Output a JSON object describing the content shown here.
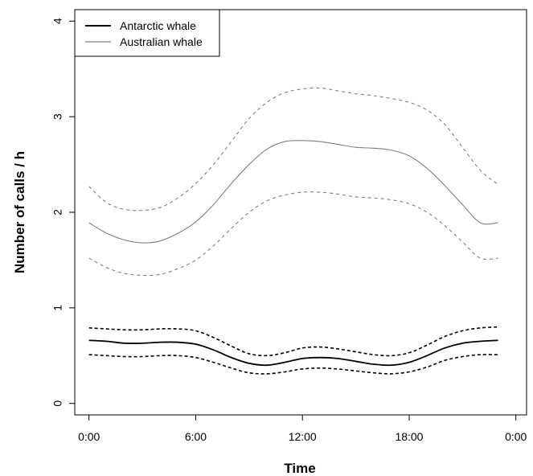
{
  "chart_data": {
    "type": "line",
    "title": "",
    "xlabel": "Time",
    "ylabel": "Number of calls / h",
    "x_ticks": [
      "0:00",
      "6:00",
      "12:00",
      "18:00",
      "0:00"
    ],
    "y_ticks": [
      "0",
      "1",
      "2",
      "3",
      "4"
    ],
    "xlim": [
      -0.8,
      24.6
    ],
    "ylim": [
      -0.12,
      4.12
    ],
    "x_unit": "hour of day",
    "grid": false,
    "legend_position": "top-left",
    "x": [
      0,
      1,
      2,
      3,
      4,
      5,
      6,
      7,
      8,
      9,
      10,
      11,
      12,
      13,
      14,
      15,
      16,
      17,
      18,
      19,
      20,
      21,
      22,
      23
    ],
    "series": [
      {
        "name": "Antarctic whale",
        "color": "#000000",
        "style": "solid",
        "values": [
          0.66,
          0.65,
          0.63,
          0.63,
          0.64,
          0.64,
          0.62,
          0.56,
          0.48,
          0.42,
          0.4,
          0.43,
          0.47,
          0.48,
          0.47,
          0.44,
          0.41,
          0.4,
          0.43,
          0.5,
          0.58,
          0.63,
          0.65,
          0.66
        ]
      },
      {
        "name": "Antarctic whale upper CI",
        "color": "#000000",
        "style": "dashed",
        "values": [
          0.79,
          0.78,
          0.77,
          0.77,
          0.78,
          0.78,
          0.76,
          0.69,
          0.6,
          0.52,
          0.5,
          0.53,
          0.58,
          0.59,
          0.57,
          0.54,
          0.51,
          0.5,
          0.53,
          0.61,
          0.7,
          0.76,
          0.79,
          0.8
        ]
      },
      {
        "name": "Antarctic whale lower CI",
        "color": "#000000",
        "style": "dashed",
        "values": [
          0.51,
          0.5,
          0.49,
          0.49,
          0.5,
          0.5,
          0.48,
          0.43,
          0.37,
          0.32,
          0.31,
          0.33,
          0.36,
          0.37,
          0.36,
          0.34,
          0.32,
          0.31,
          0.33,
          0.38,
          0.45,
          0.49,
          0.51,
          0.51
        ]
      },
      {
        "name": "Australian whale",
        "color": "#7f7f7f",
        "style": "solid",
        "values": [
          1.89,
          1.78,
          1.71,
          1.68,
          1.7,
          1.78,
          1.9,
          2.08,
          2.3,
          2.5,
          2.66,
          2.74,
          2.75,
          2.74,
          2.71,
          2.68,
          2.67,
          2.65,
          2.59,
          2.46,
          2.28,
          2.08,
          1.89,
          1.89
        ]
      },
      {
        "name": "Australian whale upper CI",
        "color": "#7f7f7f",
        "style": "dashed",
        "values": [
          2.27,
          2.1,
          2.03,
          2.02,
          2.05,
          2.15,
          2.3,
          2.5,
          2.74,
          2.98,
          3.15,
          3.25,
          3.29,
          3.3,
          3.27,
          3.24,
          3.22,
          3.19,
          3.15,
          3.07,
          2.92,
          2.68,
          2.44,
          2.29
        ]
      },
      {
        "name": "Australian whale lower CI",
        "color": "#7f7f7f",
        "style": "dashed",
        "values": [
          1.52,
          1.42,
          1.36,
          1.34,
          1.35,
          1.41,
          1.5,
          1.65,
          1.83,
          2.0,
          2.12,
          2.18,
          2.21,
          2.21,
          2.19,
          2.16,
          2.15,
          2.13,
          2.09,
          2.0,
          1.86,
          1.69,
          1.52,
          1.52
        ]
      }
    ],
    "legend": [
      "Antarctic whale",
      "Australian whale"
    ]
  }
}
